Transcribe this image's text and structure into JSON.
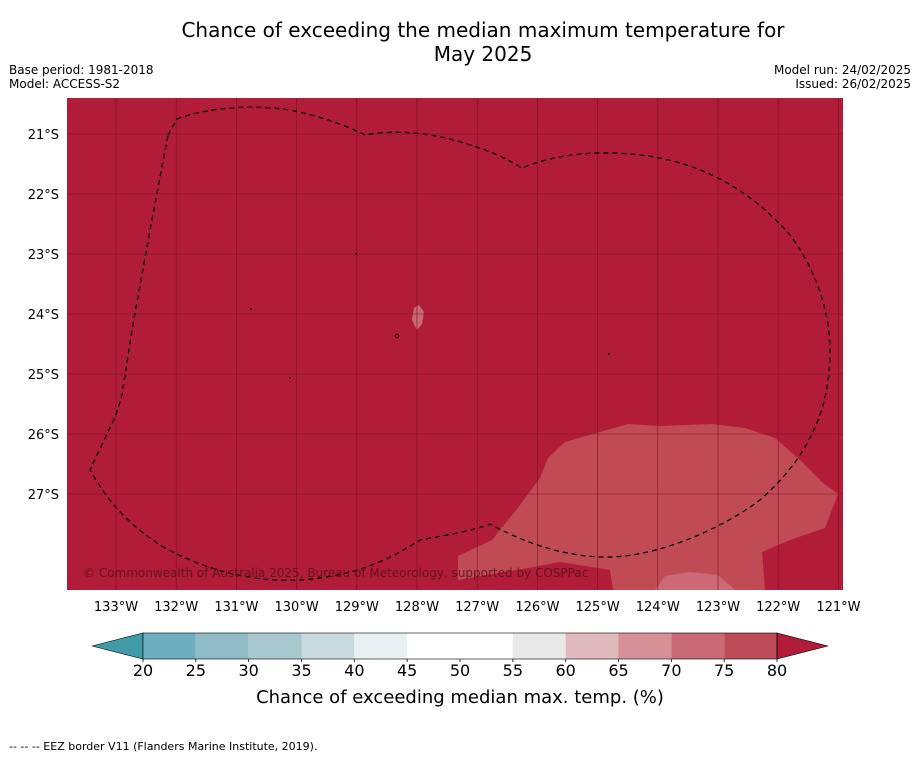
{
  "title_line1": "Chance of exceeding the median maximum temperature for",
  "title_line2": "May 2025",
  "base_period": "Base period: 1981-2018",
  "model": "Model: ACCESS-S2",
  "model_run": "Model run: 24/02/2025",
  "issued": "Issued: 26/02/2025",
  "copyright": "© Commonwealth of Australia 2025, Bureau of Meteorology, supported by COSPPac",
  "footer_legend": "--  --  -- EEZ border V11 (Flanders Marine Institute, 2019).",
  "lat_labels": [
    "21°S",
    "22°S",
    "23°S",
    "24°S",
    "25°S",
    "26°S",
    "27°S"
  ],
  "lon_labels": [
    "133°W",
    "132°W",
    "131°W",
    "130°W",
    "129°W",
    "128°W",
    "127°W",
    "126°W",
    "125°W",
    "124°W",
    "123°W",
    "122°W",
    "121°W"
  ],
  "colorbar": {
    "label": "Chance of exceeding median max. temp. (%)",
    "ticks": [
      "20",
      "25",
      "30",
      "35",
      "40",
      "45",
      "50",
      "55",
      "60",
      "65",
      "70",
      "75",
      "80"
    ],
    "colors": [
      "#6eafbf",
      "#8fbcc7",
      "#a8c8cf",
      "#c8dade",
      "#e9f0f2",
      "#ffffff",
      "#ffffff",
      "#e9e9e9",
      "#e0b9bf",
      "#d69198",
      "#c96a76",
      "#be4b58"
    ],
    "under_color": "#3f9ba8",
    "over_color": "#b11c38"
  },
  "map_colors": {
    "background": "#b11c38",
    "patch_65_70": "#c14b55",
    "patch_60_65": "#c96a76",
    "grid": "#7a1022"
  }
}
